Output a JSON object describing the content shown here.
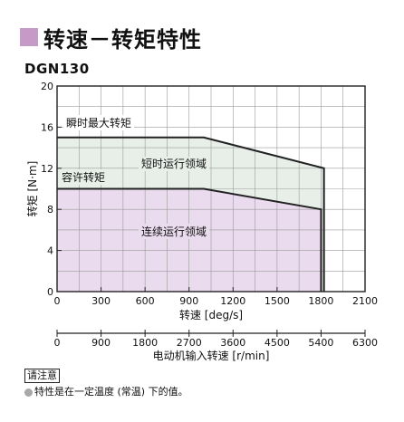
{
  "heading": "转速－转矩特性",
  "model": "DGN130",
  "note": {
    "label": "请注意",
    "text": "特性是在一定温度 (常温) 下的值。"
  },
  "colors": {
    "accent_square": "#c59ac7",
    "continuous_region": "#eadbee",
    "short_time_region": "#e8efe9"
  },
  "chart_data": {
    "type": "area",
    "xlabel": "转速 [deg/s]",
    "ylabel": "转矩 [N·m]",
    "xlim": [
      0,
      2100
    ],
    "ylim": [
      0,
      20
    ],
    "x_ticks": [
      0,
      300,
      600,
      900,
      1200,
      1500,
      1800,
      2100
    ],
    "y_ticks": [
      0,
      4,
      8,
      12,
      16,
      20
    ],
    "secondary_xlabel": "电动机输入转速 [r/min]",
    "secondary_xlim": [
      0,
      6300
    ],
    "secondary_x_ticks": [
      0,
      900,
      1800,
      2700,
      3600,
      4500,
      5400,
      6300
    ],
    "grid": true,
    "series": [
      {
        "name": "瞬时最大转矩",
        "x": [
          0,
          1000,
          1820,
          1820
        ],
        "y": [
          15,
          15,
          12,
          0
        ]
      },
      {
        "name": "容许转矩",
        "x": [
          0,
          1000,
          1800,
          1800
        ],
        "y": [
          10,
          10,
          8,
          0
        ]
      }
    ],
    "regions": [
      {
        "name": "连续运行领域"
      },
      {
        "name": "短时运行领域"
      }
    ]
  }
}
